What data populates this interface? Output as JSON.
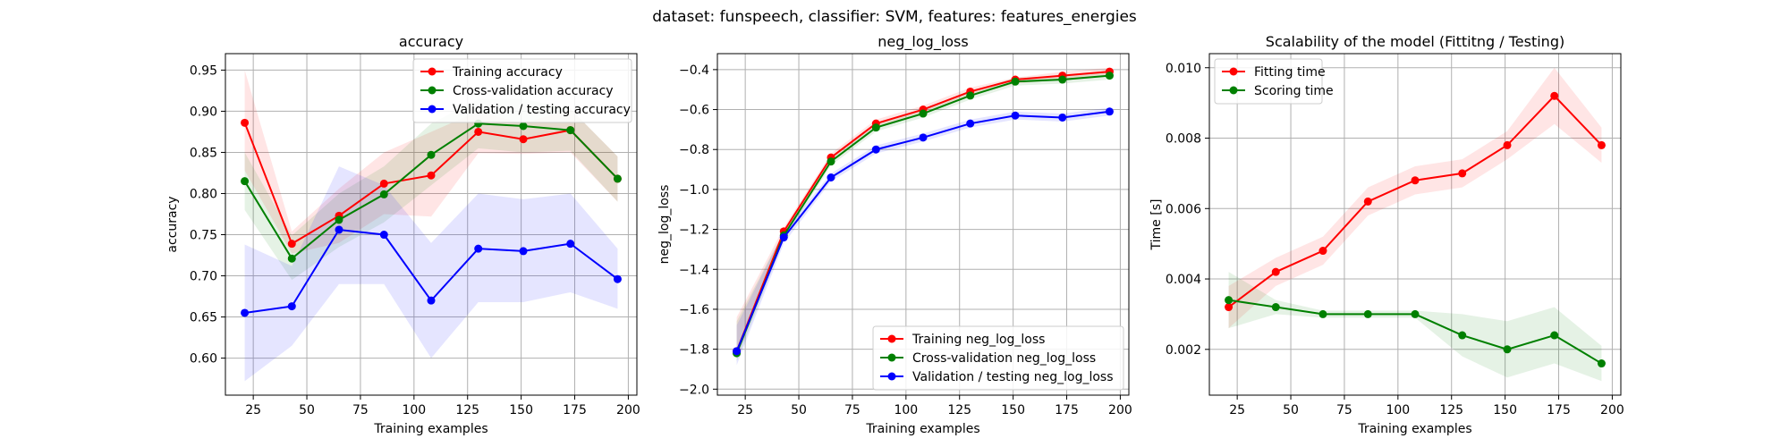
{
  "figure": {
    "suptitle": "dataset: funspeech, classifier: SVM, features: features_energies"
  },
  "chart_data": [
    {
      "type": "line",
      "title": "accuracy",
      "xlabel": "Training examples",
      "ylabel": "accuracy",
      "xlim": [
        12,
        204
      ],
      "ylim": [
        0.555,
        0.97
      ],
      "xticks": [
        25,
        50,
        75,
        100,
        125,
        150,
        175,
        200
      ],
      "yticks": [
        0.6,
        0.65,
        0.7,
        0.75,
        0.8,
        0.85,
        0.9,
        0.95
      ],
      "ytick_decimals": 2,
      "grid": true,
      "legend_position": "top-right",
      "x": [
        21,
        43,
        65,
        86,
        108,
        130,
        151,
        173,
        195
      ],
      "series": [
        {
          "name": "Training accuracy",
          "color": "#ff0000",
          "values": [
            0.886,
            0.739,
            0.773,
            0.812,
            0.822,
            0.875,
            0.866,
            0.877,
            0.818
          ],
          "band_low": [
            0.828,
            0.727,
            0.74,
            0.775,
            0.772,
            0.849,
            0.848,
            0.85,
            0.79
          ],
          "band_high": [
            0.95,
            0.754,
            0.806,
            0.85,
            0.875,
            0.9,
            0.885,
            0.903,
            0.845
          ]
        },
        {
          "name": "Cross-validation accuracy",
          "color": "#008000",
          "values": [
            0.815,
            0.721,
            0.768,
            0.799,
            0.847,
            0.885,
            0.882,
            0.877,
            0.818
          ],
          "band_low": [
            0.78,
            0.695,
            0.735,
            0.765,
            0.81,
            0.855,
            0.85,
            0.852,
            0.79
          ],
          "band_high": [
            0.85,
            0.749,
            0.8,
            0.833,
            0.885,
            0.915,
            0.915,
            0.903,
            0.845
          ]
        },
        {
          "name": "Validation / testing accuracy",
          "color": "#0000ff",
          "values": [
            0.655,
            0.663,
            0.756,
            0.75,
            0.67,
            0.733,
            0.73,
            0.739,
            0.696
          ],
          "band_low": [
            0.572,
            0.615,
            0.69,
            0.69,
            0.6,
            0.668,
            0.668,
            0.68,
            0.66
          ],
          "band_high": [
            0.738,
            0.712,
            0.833,
            0.81,
            0.74,
            0.8,
            0.793,
            0.8,
            0.733
          ]
        }
      ]
    },
    {
      "type": "line",
      "title": "neg_log_loss",
      "xlabel": "Training examples",
      "ylabel": "neg_log_loss",
      "xlim": [
        12,
        204
      ],
      "ylim": [
        -2.03,
        -0.32
      ],
      "xticks": [
        25,
        50,
        75,
        100,
        125,
        150,
        175,
        200
      ],
      "yticks": [
        -2.0,
        -1.8,
        -1.6,
        -1.4,
        -1.2,
        -1.0,
        -0.8,
        -0.6,
        -0.4
      ],
      "ytick_decimals": 1,
      "grid": true,
      "legend_position": "bottom-right",
      "x": [
        21,
        43,
        65,
        86,
        108,
        130,
        151,
        173,
        195
      ],
      "series": [
        {
          "name": "Training neg_log_loss",
          "color": "#ff0000",
          "values": [
            -1.81,
            -1.21,
            -0.84,
            -0.67,
            -0.6,
            -0.51,
            -0.45,
            -0.43,
            -0.41
          ],
          "band_low": [
            -1.84,
            -1.23,
            -0.86,
            -0.69,
            -0.62,
            -0.53,
            -0.47,
            -0.45,
            -0.43
          ],
          "band_high": [
            -1.64,
            -1.19,
            -0.82,
            -0.65,
            -0.58,
            -0.49,
            -0.44,
            -0.41,
            -0.39
          ]
        },
        {
          "name": "Cross-validation neg_log_loss",
          "color": "#008000",
          "values": [
            -1.82,
            -1.23,
            -0.86,
            -0.69,
            -0.62,
            -0.53,
            -0.46,
            -0.45,
            -0.43
          ],
          "band_low": [
            -1.86,
            -1.25,
            -0.88,
            -0.71,
            -0.64,
            -0.55,
            -0.48,
            -0.47,
            -0.45
          ],
          "band_high": [
            -1.66,
            -1.21,
            -0.84,
            -0.67,
            -0.6,
            -0.51,
            -0.44,
            -0.43,
            -0.41
          ]
        },
        {
          "name": "Validation / testing neg_log_loss",
          "color": "#0000ff",
          "values": [
            -1.81,
            -1.24,
            -0.94,
            -0.8,
            -0.74,
            -0.67,
            -0.63,
            -0.64,
            -0.61
          ],
          "band_low": [
            -1.88,
            -1.27,
            -0.96,
            -0.82,
            -0.76,
            -0.69,
            -0.65,
            -0.66,
            -0.63
          ],
          "band_high": [
            -1.68,
            -1.21,
            -0.92,
            -0.78,
            -0.72,
            -0.65,
            -0.61,
            -0.62,
            -0.59
          ]
        }
      ]
    },
    {
      "type": "line",
      "title": "Scalability of the model (Fittitng / Testing)",
      "xlabel": "Training examples",
      "ylabel": "Time [s]",
      "xlim": [
        12,
        204
      ],
      "ylim": [
        0.0007,
        0.0104
      ],
      "xticks": [
        25,
        50,
        75,
        100,
        125,
        150,
        175,
        200
      ],
      "yticks": [
        0.002,
        0.004,
        0.006,
        0.008,
        0.01
      ],
      "ytick_decimals": 3,
      "grid": true,
      "legend_position": "top-left",
      "x": [
        21,
        43,
        65,
        86,
        108,
        130,
        151,
        173,
        195
      ],
      "series": [
        {
          "name": "Fitting time",
          "color": "#ff0000",
          "values": [
            0.0032,
            0.0042,
            0.0048,
            0.0062,
            0.0068,
            0.007,
            0.0078,
            0.0092,
            0.0078
          ],
          "band_low": [
            0.0026,
            0.0038,
            0.0044,
            0.0058,
            0.0064,
            0.0066,
            0.0074,
            0.0084,
            0.0073
          ],
          "band_high": [
            0.0038,
            0.0046,
            0.0052,
            0.0066,
            0.0072,
            0.0074,
            0.0082,
            0.01,
            0.0083
          ]
        },
        {
          "name": "Scoring time",
          "color": "#008000",
          "values": [
            0.0034,
            0.0032,
            0.003,
            0.003,
            0.003,
            0.0024,
            0.002,
            0.0024,
            0.0016
          ],
          "band_low": [
            0.0026,
            0.003,
            0.0029,
            0.0029,
            0.0029,
            0.0018,
            0.0012,
            0.0016,
            0.0011
          ],
          "band_high": [
            0.0042,
            0.0034,
            0.0031,
            0.0031,
            0.0031,
            0.003,
            0.0028,
            0.0032,
            0.0021
          ]
        }
      ]
    }
  ]
}
